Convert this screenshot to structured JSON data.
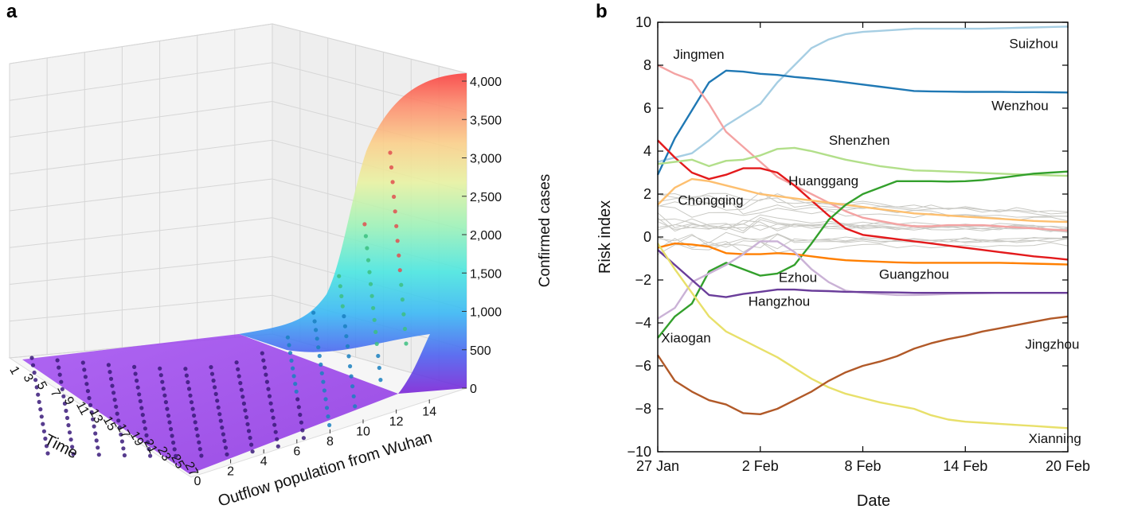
{
  "panel_a_label": "a",
  "panel_b_label": "b",
  "chart_data": [
    {
      "type": "surface3d",
      "panel": "a",
      "xlabel": "Outflow population from Wuhan",
      "ylabel": "Time",
      "zlabel": "Confirmed cases",
      "x_ticks": [
        "0",
        "2",
        "4",
        "6",
        "8",
        "10",
        "12",
        "14"
      ],
      "y_ticks": [
        "1",
        "3",
        "5",
        "7",
        "9",
        "11",
        "13",
        "15",
        "17",
        "19",
        "21",
        "23",
        "25",
        "27"
      ],
      "z_ticks": [
        "0",
        "500",
        "1,000",
        "1,500",
        "2,000",
        "2,500",
        "3,000",
        "3,500",
        "4,000"
      ],
      "xlim": [
        0,
        15
      ],
      "ylim": [
        1,
        27
      ],
      "zlim": [
        0,
        4000
      ]
    },
    {
      "type": "line",
      "panel": "b",
      "xlabel": "Date",
      "ylabel": "Risk index",
      "x_tick_labels": [
        "27 Jan",
        "2 Feb",
        "8 Feb",
        "14 Feb",
        "20 Feb"
      ],
      "x_tick_values": [
        0,
        6,
        12,
        18,
        24
      ],
      "y_ticks": [
        "10",
        "8",
        "6",
        "4",
        "2",
        "0",
        "−2",
        "−4",
        "−6",
        "−8",
        "−10"
      ],
      "xlim": [
        0,
        24
      ],
      "ylim": [
        -10,
        10
      ],
      "series": [
        {
          "name": "Suizhou",
          "color": "#a6cee3",
          "x": [
            0,
            1,
            2,
            3,
            4,
            5,
            6,
            7,
            8,
            9,
            10,
            11,
            12,
            13,
            14,
            15,
            16,
            17,
            18,
            19,
            20,
            21,
            22,
            23,
            24
          ],
          "y": [
            3.5,
            3.7,
            3.9,
            4.5,
            5.2,
            5.7,
            6.2,
            7.2,
            8.0,
            8.8,
            9.2,
            9.45,
            9.55,
            9.6,
            9.65,
            9.7,
            9.7,
            9.7,
            9.7,
            9.7,
            9.72,
            9.74,
            9.76,
            9.78,
            9.8
          ]
        },
        {
          "name": "Wenzhou",
          "color": "#1f78b4",
          "x": [
            0,
            1,
            2,
            3,
            4,
            5,
            6,
            7,
            8,
            9,
            10,
            11,
            12,
            13,
            14,
            15,
            16,
            17,
            18,
            19,
            20,
            21,
            22,
            23,
            24
          ],
          "y": [
            2.9,
            4.6,
            5.9,
            7.2,
            7.75,
            7.7,
            7.6,
            7.55,
            7.45,
            7.38,
            7.3,
            7.2,
            7.1,
            7.0,
            6.9,
            6.8,
            6.78,
            6.77,
            6.76,
            6.76,
            6.76,
            6.75,
            6.75,
            6.74,
            6.73
          ]
        },
        {
          "name": "Jingmen",
          "color": "#f4a3a3",
          "x": [
            0,
            1,
            2,
            3,
            4,
            5,
            6,
            7,
            8,
            9,
            10,
            11,
            12,
            13,
            14,
            15,
            16,
            17,
            18,
            19,
            20,
            21,
            22,
            23,
            24
          ],
          "y": [
            8.0,
            7.6,
            7.3,
            6.2,
            4.9,
            4.2,
            3.5,
            2.8,
            2.4,
            2.0,
            1.6,
            1.2,
            0.9,
            0.75,
            0.6,
            0.5,
            0.5,
            0.55,
            0.55,
            0.55,
            0.5,
            0.45,
            0.4,
            0.35,
            0.3
          ]
        },
        {
          "name": "Huanggang",
          "color": "#e31a1c",
          "x": [
            0,
            1,
            2,
            3,
            4,
            5,
            6,
            7,
            8,
            9,
            10,
            11,
            12,
            13,
            14,
            15,
            16,
            17,
            18,
            19,
            20,
            21,
            22,
            23,
            24
          ],
          "y": [
            4.5,
            3.7,
            3.0,
            2.7,
            2.9,
            3.2,
            3.2,
            3.0,
            2.4,
            1.7,
            1.0,
            0.4,
            0.1,
            0.0,
            -0.1,
            -0.2,
            -0.3,
            -0.4,
            -0.5,
            -0.6,
            -0.7,
            -0.8,
            -0.9,
            -0.97,
            -1.05
          ]
        },
        {
          "name": "Shenzhen",
          "color": "#b2df8a",
          "x": [
            0,
            1,
            2,
            3,
            4,
            5,
            6,
            7,
            8,
            9,
            10,
            11,
            12,
            13,
            14,
            15,
            16,
            17,
            18,
            19,
            20,
            21,
            22,
            23,
            24
          ],
          "y": [
            3.4,
            3.5,
            3.6,
            3.3,
            3.55,
            3.6,
            3.8,
            4.1,
            4.15,
            4.0,
            3.8,
            3.6,
            3.45,
            3.3,
            3.2,
            3.1,
            3.08,
            3.05,
            3.02,
            2.98,
            2.95,
            2.92,
            2.9,
            2.87,
            2.85
          ]
        },
        {
          "name": "Chongqing",
          "color": "#fdbf6f",
          "x": [
            0,
            1,
            2,
            3,
            4,
            5,
            6,
            7,
            8,
            9,
            10,
            11,
            12,
            13,
            14,
            15,
            16,
            17,
            18,
            19,
            20,
            21,
            22,
            23,
            24
          ],
          "y": [
            1.5,
            2.3,
            2.7,
            2.6,
            2.4,
            2.2,
            2.0,
            1.9,
            1.8,
            1.7,
            1.6,
            1.5,
            1.4,
            1.3,
            1.2,
            1.1,
            1.05,
            1.0,
            0.95,
            0.9,
            0.85,
            0.8,
            0.75,
            0.72,
            0.7
          ]
        },
        {
          "name": "Xiaogan",
          "color": "#33a02c",
          "x": [
            0,
            1,
            2,
            3,
            4,
            5,
            6,
            7,
            8,
            9,
            10,
            11,
            12,
            13,
            14,
            15,
            16,
            17,
            18,
            19,
            20,
            21,
            22,
            23,
            24
          ],
          "y": [
            -4.7,
            -3.7,
            -3.1,
            -1.6,
            -1.2,
            -1.5,
            -1.8,
            -1.7,
            -1.3,
            -0.3,
            0.8,
            1.5,
            2.0,
            2.3,
            2.6,
            2.6,
            2.6,
            2.58,
            2.6,
            2.65,
            2.75,
            2.85,
            2.95,
            3.0,
            3.05
          ]
        },
        {
          "name": "Guangzhou",
          "color": "#ff7f00",
          "x": [
            0,
            1,
            2,
            3,
            4,
            5,
            6,
            7,
            8,
            9,
            10,
            11,
            12,
            13,
            14,
            15,
            16,
            17,
            18,
            19,
            20,
            21,
            22,
            23,
            24
          ],
          "y": [
            -0.5,
            -0.3,
            -0.35,
            -0.45,
            -0.75,
            -0.8,
            -0.8,
            -0.75,
            -0.8,
            -0.9,
            -1.0,
            -1.08,
            -1.12,
            -1.15,
            -1.18,
            -1.2,
            -1.2,
            -1.2,
            -1.2,
            -1.2,
            -1.2,
            -1.22,
            -1.24,
            -1.26,
            -1.28
          ]
        },
        {
          "name": "Ezhou",
          "color": "#cab2d6",
          "x": [
            0,
            1,
            2,
            3,
            4,
            5,
            6,
            7,
            8,
            9,
            10,
            11,
            12,
            13,
            14,
            15,
            16,
            17,
            18,
            19,
            20,
            21,
            22,
            23,
            24
          ],
          "y": [
            -3.8,
            -3.3,
            -2.1,
            -1.7,
            -1.3,
            -0.8,
            -0.2,
            -0.2,
            -0.7,
            -1.5,
            -2.1,
            -2.5,
            -2.6,
            -2.65,
            -2.7,
            -2.7,
            -2.68,
            -2.65,
            -2.63,
            -2.62,
            -2.6,
            -2.6,
            -2.6,
            -2.6,
            -2.6
          ]
        },
        {
          "name": "Hangzhou",
          "color": "#6a3d9a",
          "x": [
            0,
            1,
            2,
            3,
            4,
            5,
            6,
            7,
            8,
            9,
            10,
            11,
            12,
            13,
            14,
            15,
            16,
            17,
            18,
            19,
            20,
            21,
            22,
            23,
            24
          ],
          "y": [
            -0.6,
            -1.3,
            -2.0,
            -2.7,
            -2.8,
            -2.65,
            -2.55,
            -2.45,
            -2.45,
            -2.5,
            -2.52,
            -2.55,
            -2.56,
            -2.57,
            -2.58,
            -2.6,
            -2.6,
            -2.6,
            -2.6,
            -2.6,
            -2.6,
            -2.6,
            -2.6,
            -2.6,
            -2.6
          ]
        },
        {
          "name": "Xianning",
          "color": "#e8e06a",
          "x": [
            0,
            1,
            2,
            3,
            4,
            5,
            6,
            7,
            8,
            9,
            10,
            11,
            12,
            13,
            14,
            15,
            16,
            17,
            18,
            19,
            20,
            21,
            22,
            23,
            24
          ],
          "y": [
            -0.3,
            -1.5,
            -2.6,
            -3.7,
            -4.4,
            -4.8,
            -5.2,
            -5.6,
            -6.1,
            -6.6,
            -7.0,
            -7.3,
            -7.5,
            -7.7,
            -7.85,
            -8.0,
            -8.3,
            -8.5,
            -8.6,
            -8.65,
            -8.7,
            -8.75,
            -8.8,
            -8.85,
            -8.9
          ]
        },
        {
          "name": "Jingzhou",
          "color": "#b15928",
          "x": [
            0,
            1,
            2,
            3,
            4,
            5,
            6,
            7,
            8,
            9,
            10,
            11,
            12,
            13,
            14,
            15,
            16,
            17,
            18,
            19,
            20,
            21,
            22,
            23,
            24
          ],
          "y": [
            -5.5,
            -6.7,
            -7.2,
            -7.6,
            -7.8,
            -8.2,
            -8.25,
            -8.0,
            -7.6,
            -7.2,
            -6.7,
            -6.3,
            -6.0,
            -5.8,
            -5.55,
            -5.2,
            -4.95,
            -4.75,
            -4.6,
            -4.4,
            -4.25,
            -4.1,
            -3.95,
            -3.8,
            -3.7
          ]
        }
      ],
      "background_series_count": 16
    }
  ]
}
